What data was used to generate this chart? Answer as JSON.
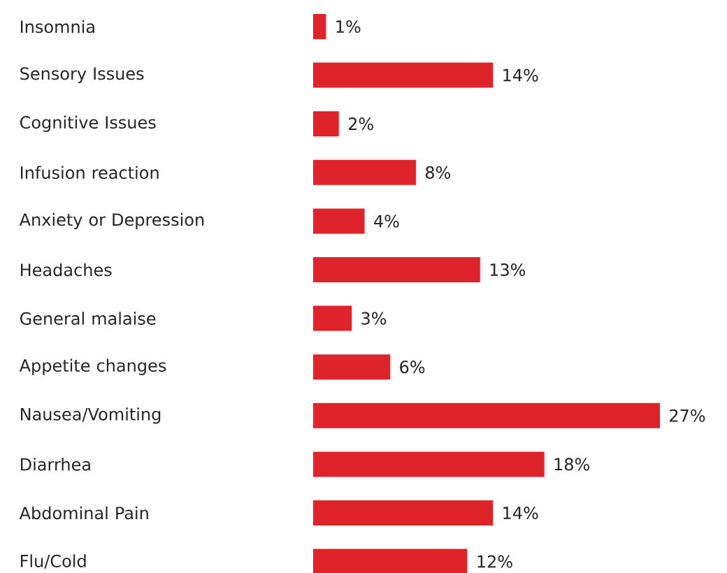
{
  "chart_data": {
    "type": "bar",
    "orientation": "horizontal",
    "categories": [
      "Insomnia",
      "Sensory Issues",
      "Cognitive Issues",
      "Infusion reaction",
      "Anxiety or Depression",
      "Headaches",
      "General malaise",
      "Appetite changes",
      "Nausea/Vomiting",
      "Diarrhea",
      "Abdominal Pain",
      "Flu/Cold"
    ],
    "values": [
      1,
      14,
      2,
      8,
      4,
      13,
      3,
      6,
      27,
      18,
      14,
      12
    ],
    "value_labels": [
      "1%",
      "14%",
      "2%",
      "8%",
      "4%",
      "13%",
      "3%",
      "6%",
      "27%",
      "18%",
      "14%",
      "12%"
    ],
    "color": "#df232b"
  }
}
